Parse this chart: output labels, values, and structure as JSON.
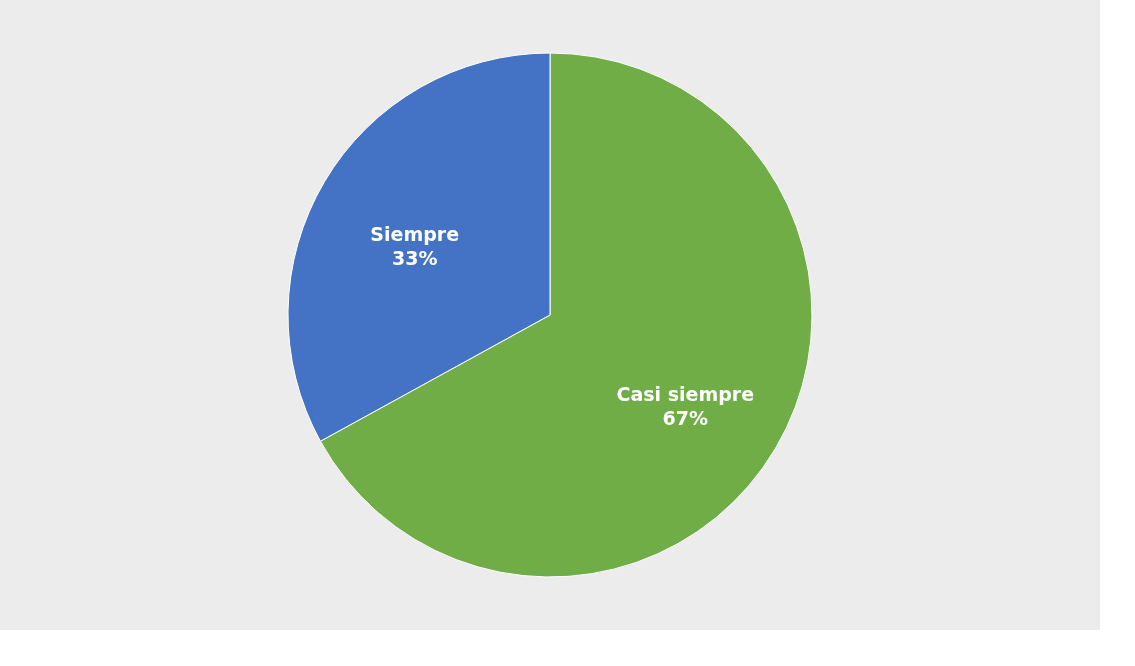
{
  "chart_data": {
    "type": "pie",
    "categories": [
      "Casi siempre",
      "Siempre"
    ],
    "values": [
      67,
      33
    ],
    "colors": [
      "#70ad47",
      "#4472c4"
    ],
    "value_labels": [
      "67%",
      "33%"
    ],
    "legend": false
  }
}
